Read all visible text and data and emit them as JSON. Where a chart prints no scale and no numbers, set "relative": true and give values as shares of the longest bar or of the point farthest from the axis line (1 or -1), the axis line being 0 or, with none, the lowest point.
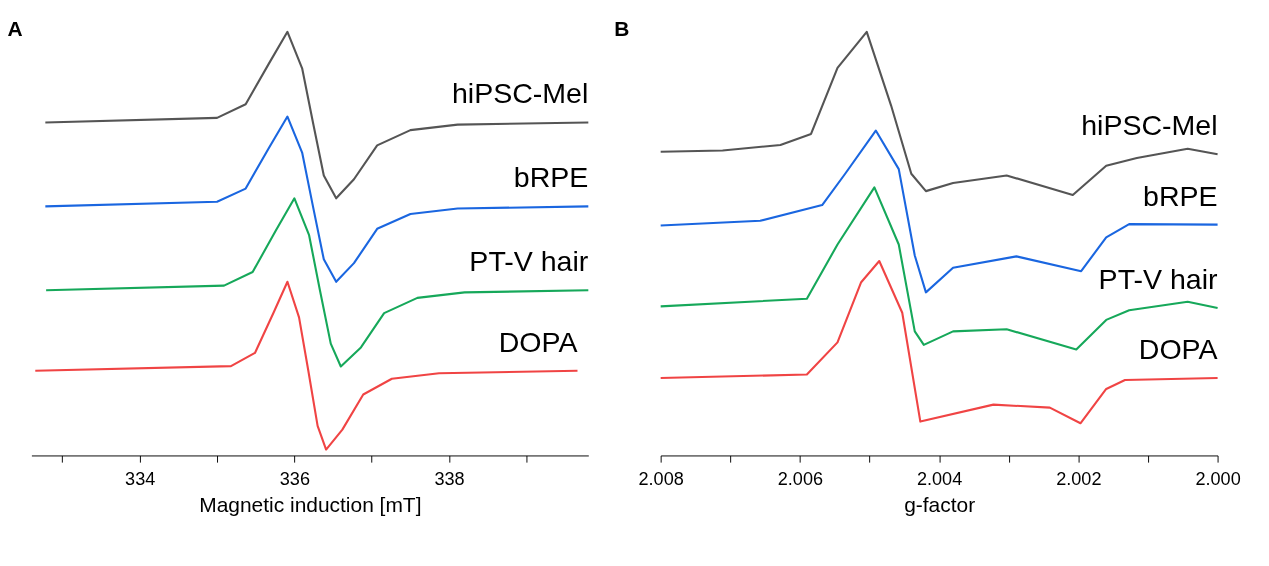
{
  "chart_data": [
    {
      "type": "line",
      "title": "A",
      "xlabel": "Magnetic induction [mT]",
      "relative": true,
      "xlim": [
        332.6,
        339.8
      ],
      "xticks": [
        {
          "value": 333,
          "label": null
        },
        334,
        {
          "value": 335,
          "label": null
        },
        336,
        {
          "value": 337,
          "label": null
        },
        338,
        {
          "value": 339,
          "label": null
        }
      ],
      "series": [
        {
          "name": "hiPSC-Mel",
          "color": "#555555",
          "x": [
            332.78,
            335.0,
            335.37,
            335.67,
            335.91,
            336.1,
            336.24,
            336.38,
            336.54,
            336.77,
            337.07,
            337.5,
            338.11,
            339.8
          ],
          "values": [
            0.786,
            0.797,
            0.829,
            0.925,
            1.0,
            0.914,
            0.786,
            0.661,
            0.607,
            0.652,
            0.732,
            0.768,
            0.781,
            0.786
          ]
        },
        {
          "name": "bRPE",
          "color": "#1a66e0",
          "x": [
            332.78,
            335.0,
            335.37,
            335.67,
            335.91,
            336.1,
            336.24,
            336.38,
            336.54,
            336.77,
            337.07,
            337.5,
            338.11,
            339.8
          ],
          "values": [
            0.588,
            0.599,
            0.63,
            0.726,
            0.8,
            0.715,
            0.588,
            0.463,
            0.41,
            0.454,
            0.535,
            0.57,
            0.583,
            0.588
          ]
        },
        {
          "name": "PT-V hair",
          "color": "#16a85a",
          "x": [
            332.79,
            335.09,
            335.46,
            335.76,
            336.0,
            336.19,
            336.33,
            336.47,
            336.6,
            336.86,
            337.16,
            337.59,
            338.2,
            339.8
          ],
          "values": [
            0.39,
            0.401,
            0.433,
            0.531,
            0.607,
            0.52,
            0.39,
            0.264,
            0.21,
            0.255,
            0.336,
            0.372,
            0.385,
            0.39
          ]
        },
        {
          "name": "DOPA",
          "color": "#f04444",
          "x": [
            332.65,
            335.18,
            335.49,
            335.73,
            335.91,
            336.06,
            336.18,
            336.3,
            336.41,
            336.62,
            336.89,
            337.26,
            337.87,
            339.66
          ],
          "values": [
            0.2,
            0.211,
            0.242,
            0.337,
            0.41,
            0.326,
            0.2,
            0.07,
            0.014,
            0.061,
            0.144,
            0.181,
            0.194,
            0.2
          ]
        }
      ]
    },
    {
      "type": "line",
      "title": "B",
      "xlabel": "g-factor",
      "relative": true,
      "xlim": [
        2.008,
        2.0
      ],
      "xticks": [
        2.008,
        {
          "value": 2.007,
          "label": null
        },
        2.006,
        {
          "value": 2.005,
          "label": null
        },
        2.004,
        {
          "value": 2.003,
          "label": null
        },
        2.002,
        {
          "value": 2.001,
          "label": null
        },
        {
          "value": 2.0,
          "label": "2.000"
        }
      ],
      "series": [
        {
          "name": "hiPSC-Mel",
          "color": "#555555",
          "x": [
            2.008,
            2.00711,
            2.00628,
            2.00584,
            2.00546,
            2.00504,
            2.00469,
            2.0044,
            2.00419,
            2.0038,
            2.00303,
            2.00208,
            2.0016,
            2.00116,
            2.00043,
            2.0
          ],
          "values": [
            0.717,
            0.72,
            0.733,
            0.759,
            0.915,
            1.0,
            0.826,
            0.665,
            0.624,
            0.643,
            0.661,
            0.615,
            0.684,
            0.702,
            0.724,
            0.711
          ]
        },
        {
          "name": "bRPE",
          "color": "#1a66e0",
          "x": [
            2.008,
            2.00657,
            2.00568,
            2.00535,
            2.00491,
            2.00458,
            2.00435,
            2.00419,
            2.0038,
            2.00289,
            2.00196,
            2.0016,
            2.00127,
            2.0
          ],
          "values": [
            0.543,
            0.554,
            0.591,
            0.665,
            0.767,
            0.676,
            0.472,
            0.385,
            0.443,
            0.47,
            0.435,
            0.515,
            0.546,
            0.545
          ]
        },
        {
          "name": "PT-V hair",
          "color": "#16a85a",
          "x": [
            2.008,
            2.0059,
            2.00546,
            2.00493,
            2.00458,
            2.00435,
            2.00422,
            2.0038,
            2.00303,
            2.00203,
            2.0016,
            2.00127,
            2.00043,
            2.0
          ],
          "values": [
            0.352,
            0.37,
            0.498,
            0.633,
            0.498,
            0.293,
            0.261,
            0.293,
            0.298,
            0.25,
            0.32,
            0.343,
            0.363,
            0.348
          ]
        },
        {
          "name": "DOPA",
          "color": "#f04444",
          "x": [
            2.008,
            2.0059,
            2.00546,
            2.00512,
            2.00486,
            2.00453,
            2.00427,
            2.00322,
            2.00241,
            2.00197,
            2.0016,
            2.00133,
            2.0
          ],
          "values": [
            0.183,
            0.191,
            0.267,
            0.409,
            0.459,
            0.337,
            0.08,
            0.12,
            0.113,
            0.076,
            0.157,
            0.178,
            0.183
          ]
        }
      ]
    }
  ]
}
